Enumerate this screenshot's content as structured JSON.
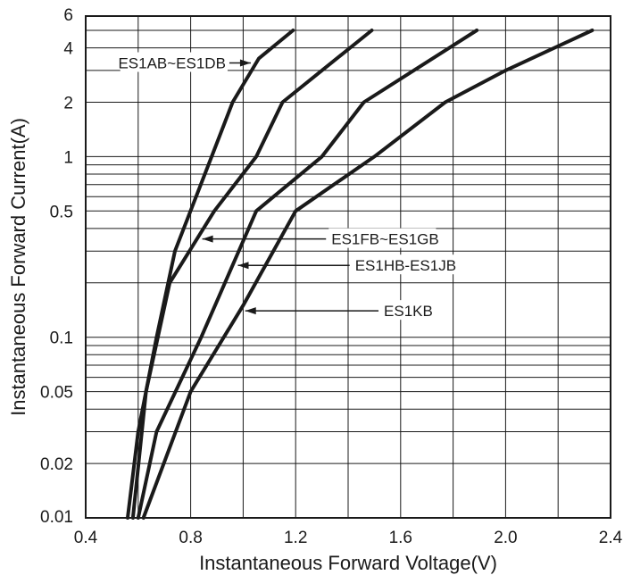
{
  "chart_data": {
    "type": "line",
    "xlabel": "Instantaneous Forward Voltage(V)",
    "ylabel": "Instantaneous Forward Current(A)",
    "xlim": [
      0.4,
      2.4
    ],
    "ylim": [
      0.01,
      6
    ],
    "yscale": "log",
    "grid": true,
    "x_ticks": [
      {
        "value": 0.4,
        "label": "0.4"
      },
      {
        "value": 0.8,
        "label": "0.8"
      },
      {
        "value": 1.2,
        "label": "1.2"
      },
      {
        "value": 1.6,
        "label": "1.6"
      },
      {
        "value": 2.0,
        "label": "2.0"
      },
      {
        "value": 2.4,
        "label": "2.4"
      }
    ],
    "y_ticks": [
      {
        "value": 6,
        "label": "6"
      },
      {
        "value": 4,
        "label": "4"
      },
      {
        "value": 2,
        "label": "2"
      },
      {
        "value": 1,
        "label": "1"
      },
      {
        "value": 0.5,
        "label": "0.5"
      },
      {
        "value": 0.1,
        "label": "0.1"
      },
      {
        "value": 0.05,
        "label": "0.05"
      },
      {
        "value": 0.02,
        "label": "0.02"
      },
      {
        "value": 0.01,
        "label": "0.01"
      }
    ],
    "series": [
      {
        "name": "ES1AB~ES1DB",
        "points": [
          [
            0.56,
            0.01
          ],
          [
            0.6,
            0.03
          ],
          [
            0.67,
            0.1
          ],
          [
            0.74,
            0.3
          ],
          [
            0.88,
            1
          ],
          [
            0.96,
            2
          ],
          [
            1.06,
            3.5
          ],
          [
            1.19,
            5
          ]
        ]
      },
      {
        "name": "ES1FB~ES1GB",
        "points": [
          [
            0.58,
            0.01
          ],
          [
            0.63,
            0.05
          ],
          [
            0.72,
            0.2
          ],
          [
            0.89,
            0.5
          ],
          [
            1.05,
            1
          ],
          [
            1.15,
            2
          ],
          [
            1.3,
            3
          ],
          [
            1.49,
            5
          ]
        ]
      },
      {
        "name": "ES1HB-ES1JB",
        "points": [
          [
            0.6,
            0.01
          ],
          [
            0.67,
            0.03
          ],
          [
            0.84,
            0.1
          ],
          [
            1.05,
            0.5
          ],
          [
            1.3,
            1
          ],
          [
            1.46,
            2
          ],
          [
            1.65,
            3
          ],
          [
            1.89,
            5
          ]
        ]
      },
      {
        "name": "ES1KB",
        "points": [
          [
            0.62,
            0.01
          ],
          [
            0.8,
            0.05
          ],
          [
            1.0,
            0.15
          ],
          [
            1.2,
            0.5
          ],
          [
            1.5,
            1
          ],
          [
            1.77,
            2
          ],
          [
            2.0,
            3
          ],
          [
            2.33,
            5
          ]
        ]
      }
    ],
    "annotations": [
      {
        "text": "ES1AB~ES1DB",
        "series": 0,
        "x": 1.02,
        "y": 3.3,
        "align": "left-of-curve"
      },
      {
        "text": "ES1FB~ES1GB",
        "series": 1,
        "x": 0.86,
        "y": 0.35,
        "align": "right-of-curve"
      },
      {
        "text": "ES1HB-ES1JB",
        "series": 2,
        "x": 0.95,
        "y": 0.25,
        "align": "right-of-curve"
      },
      {
        "text": "ES1KB",
        "series": 3,
        "x": 1.06,
        "y": 0.14,
        "align": "right-of-curve"
      }
    ]
  }
}
